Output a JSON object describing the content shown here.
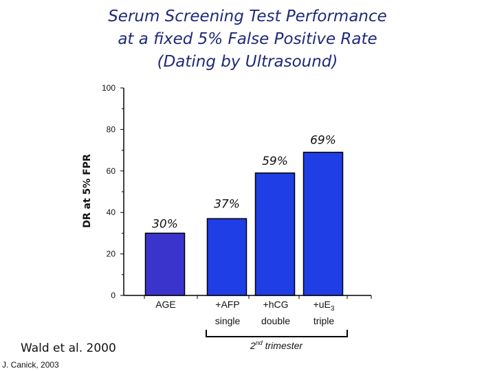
{
  "title_lines": [
    "Serum Screening Test Performance",
    "at a fixed 5% False Positive Rate",
    "(Dating by Ultrasound)"
  ],
  "credits": {
    "study": "Wald et al. 2000",
    "author": "J. Canick, 2003"
  },
  "group_annotation": {
    "ordinal_number": "2",
    "ordinal_suffix": "nd",
    "text": " trimester"
  },
  "colors": {
    "bar_fill": "#1f3ee6",
    "first_bar_fill": "#3b34cc",
    "bar_stroke": "#000000",
    "title": "#1e2a78"
  },
  "chart_data": {
    "type": "bar",
    "ylabel": "DR at 5% FPR",
    "ylim": [
      0,
      100
    ],
    "yticks": [
      0,
      20,
      40,
      60,
      80,
      100
    ],
    "grid": false,
    "categories": [
      {
        "line1": "AGE",
        "line2": "",
        "subscript": ""
      },
      {
        "line1": "+AFP",
        "line2": "single",
        "subscript": ""
      },
      {
        "line1": "+hCG",
        "line2": "double",
        "subscript": ""
      },
      {
        "line1": "+uE",
        "line2": "triple",
        "subscript": "3"
      }
    ],
    "values": [
      30,
      37,
      59,
      69
    ],
    "data_labels": [
      "30%",
      "37%",
      "59%",
      "69%"
    ]
  }
}
